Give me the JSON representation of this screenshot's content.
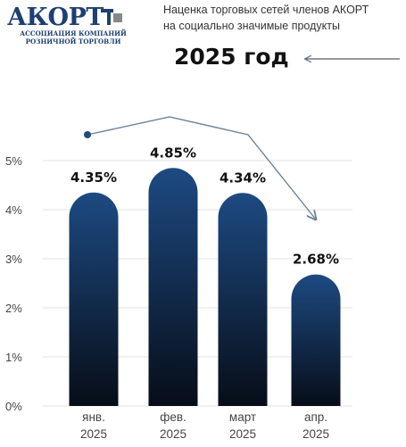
{
  "logo": {
    "word": "АКОРТ",
    "sub_line1": "АССОЦИАЦИЯ КОМПАНИЙ",
    "sub_line2": "РОЗНИЧНОЙ ТОРГОВЛИ"
  },
  "header": {
    "subtitle_line1": "Наценка торговых сетей членов АКОРТ",
    "subtitle_line2": "на социально значимые продукты"
  },
  "year_label": "2025 год",
  "colors": {
    "bar_top": "#1d4a82",
    "bar_bottom": "#070d18",
    "trend_line": "#6b8099",
    "trend_dot": "#1d4a82",
    "grid": "#e2e2e2"
  },
  "chart_data": {
    "type": "bar",
    "categories": [
      "янв. 2025",
      "фев. 2025",
      "март 2025",
      "апр. 2025"
    ],
    "category_lines": [
      [
        "янв.",
        "2025"
      ],
      [
        "фев.",
        "2025"
      ],
      [
        "март",
        "2025"
      ],
      [
        "апр.",
        "2025"
      ]
    ],
    "values": [
      4.35,
      4.85,
      4.34,
      2.68
    ],
    "value_labels": [
      "4.35%",
      "4.85%",
      "4.34%",
      "2.68%"
    ],
    "ylim": [
      0,
      5
    ],
    "yticks": [
      0,
      1,
      2,
      3,
      4,
      5
    ],
    "ytick_labels": [
      "0%",
      "1%",
      "2%",
      "3%",
      "4%",
      "5%"
    ],
    "grid": true,
    "trend_arrow": true
  }
}
